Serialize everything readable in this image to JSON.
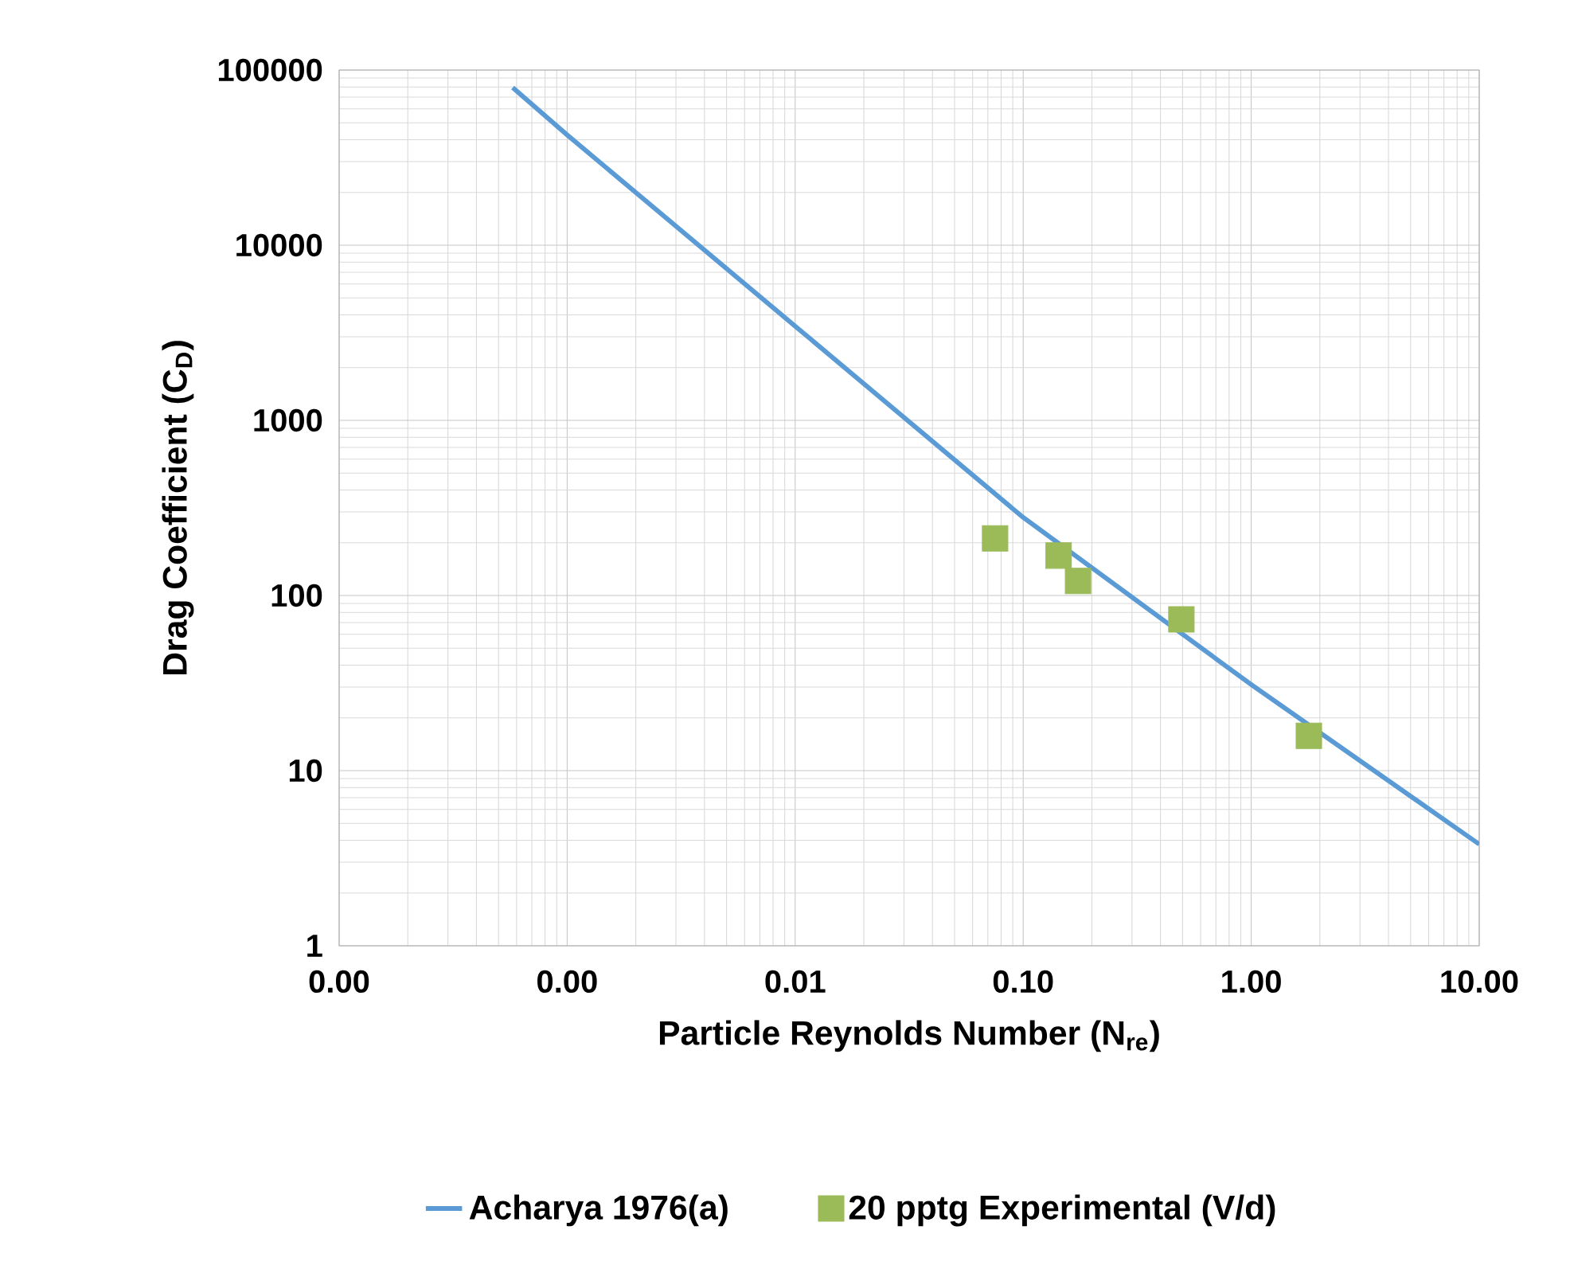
{
  "chart_data": {
    "type": "line",
    "log": "xy",
    "grid": true,
    "legend": "bottom",
    "xlabel": "Particle Reynolds Number (N$_{re}$)",
    "ylabel": "Drag Coefficient (C$_{D}$)",
    "xlim": [
      0.0001,
      10
    ],
    "ylim": [
      1,
      100000
    ],
    "xticks": [
      {
        "value": 0.0001,
        "label": "0.00"
      },
      {
        "value": 0.001,
        "label": "0.00"
      },
      {
        "value": 0.01,
        "label": "0.01"
      },
      {
        "value": 0.1,
        "label": "0.10"
      },
      {
        "value": 1,
        "label": "1.00"
      },
      {
        "value": 10,
        "label": "10.00"
      }
    ],
    "yticks": [
      1,
      10,
      100,
      1000,
      10000,
      100000
    ],
    "series": [
      {
        "name": "Acharya 1976(a)",
        "color": "#5b9bd5",
        "marker": "none",
        "x": [
          0.000577,
          0.001,
          0.01,
          0.1,
          1,
          10
        ],
        "values": [
          79400,
          42600,
          3450,
          279,
          31,
          3.8
        ]
      },
      {
        "name": "20 pptg Experimental (V/d)",
        "type": "scatter",
        "color": "#9bbb59",
        "marker": "square",
        "x": [
          0.0753,
          0.143,
          0.174,
          0.494,
          1.79
        ],
        "values": [
          212,
          169,
          121,
          73,
          15.8
        ]
      }
    ]
  }
}
